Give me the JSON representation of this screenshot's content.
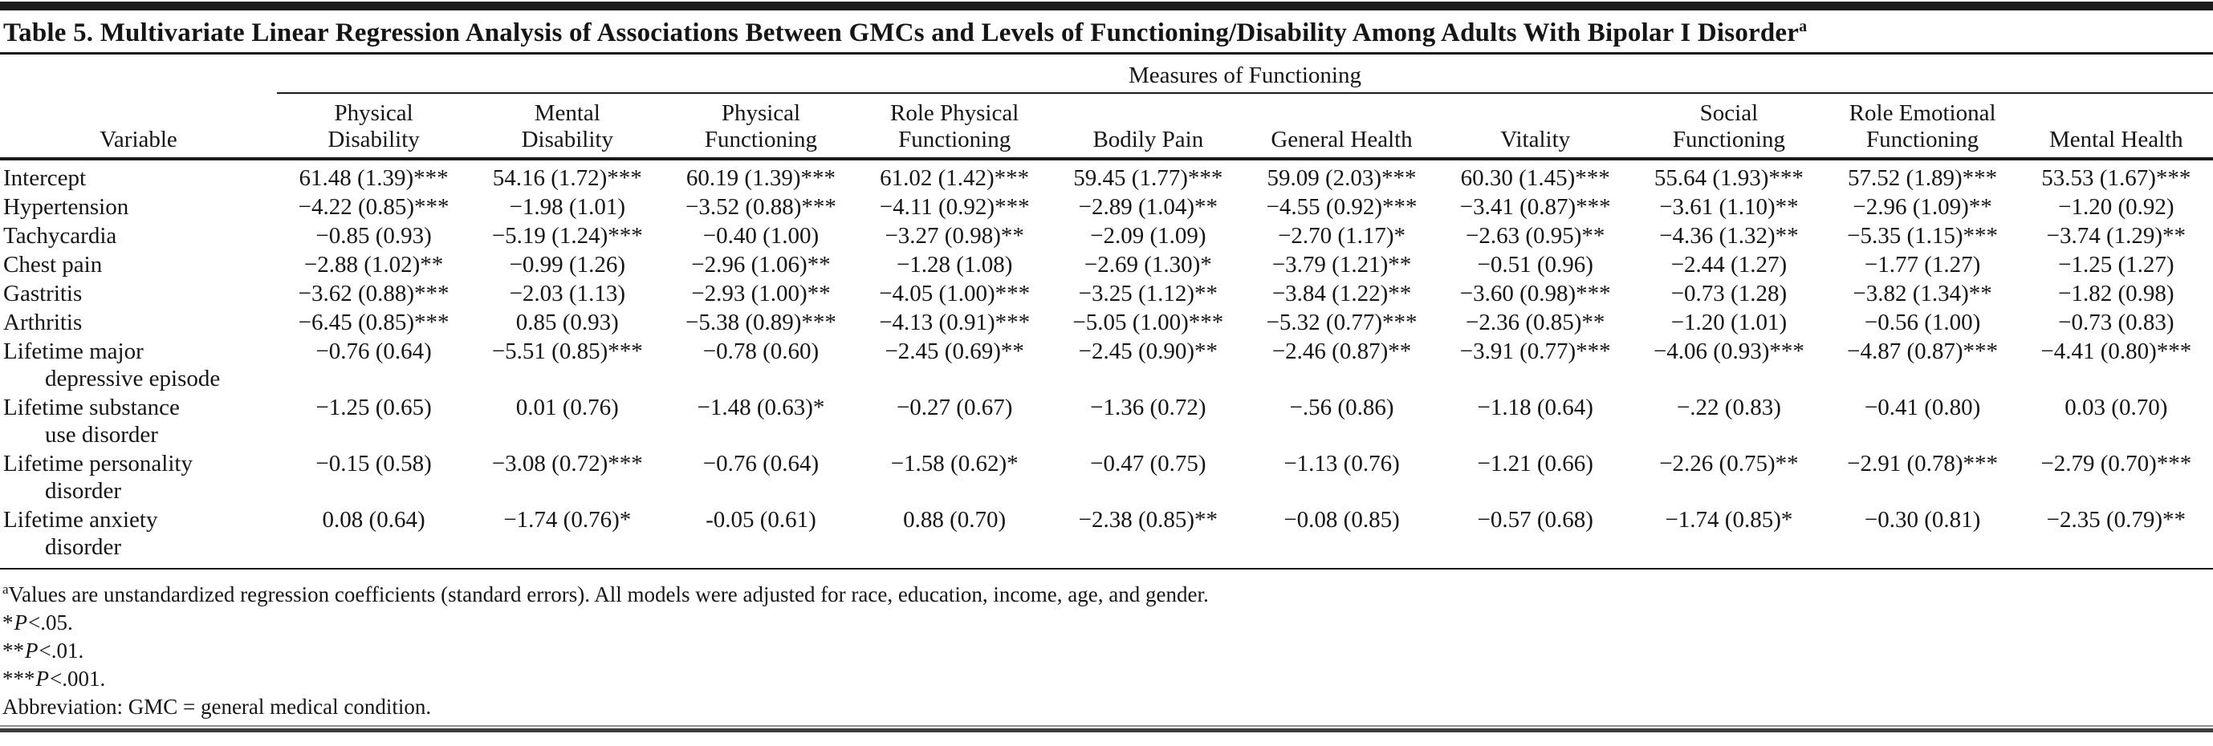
{
  "page": {
    "background": "#ffffff",
    "rule_color": "#1b1b1b",
    "text_color": "#151515"
  },
  "table": {
    "title": "Table 5. Multivariate Linear Regression Analysis of Associations Between GMCs and Levels of Functioning/Disability Among Adults With Bipolar I Disorder",
    "title_footnote_marker": "a",
    "spanner": "Measures of Functioning",
    "row_header": "Variable",
    "columns": [
      "Physical\nDisability",
      "Mental\nDisability",
      "Physical\nFunctioning",
      "Role Physical\nFunctioning",
      "Bodily Pain",
      "General Health",
      "Vitality",
      "Social\nFunctioning",
      "Role Emotional\nFunctioning",
      "Mental Health"
    ],
    "rows": [
      {
        "variable": "Intercept",
        "values": [
          "61.48 (1.39)***",
          "54.16 (1.72)***",
          "60.19 (1.39)***",
          "61.02 (1.42)***",
          "59.45 (1.77)***",
          "59.09 (2.03)***",
          "60.30 (1.45)***",
          "55.64 (1.93)***",
          "57.52 (1.89)***",
          "53.53 (1.67)***"
        ]
      },
      {
        "variable": "Hypertension",
        "values": [
          "−4.22 (0.85)***",
          "−1.98 (1.01)",
          "−3.52 (0.88)***",
          "−4.11 (0.92)***",
          "−2.89 (1.04)**",
          "−4.55 (0.92)***",
          "−3.41 (0.87)***",
          "−3.61 (1.10)**",
          "−2.96 (1.09)**",
          "−1.20 (0.92)"
        ]
      },
      {
        "variable": "Tachycardia",
        "values": [
          "−0.85 (0.93)",
          "−5.19 (1.24)***",
          "−0.40 (1.00)",
          "−3.27 (0.98)**",
          "−2.09 (1.09)",
          "−2.70 (1.17)*",
          "−2.63 (0.95)**",
          "−4.36 (1.32)**",
          "−5.35 (1.15)***",
          "−3.74 (1.29)**"
        ]
      },
      {
        "variable": "Chest pain",
        "values": [
          "−2.88 (1.02)**",
          "−0.99 (1.26)",
          "−2.96 (1.06)**",
          "−1.28 (1.08)",
          "−2.69 (1.30)*",
          "−3.79 (1.21)**",
          "−0.51 (0.96)",
          "−2.44 (1.27)",
          "−1.77 (1.27)",
          "−1.25 (1.27)"
        ]
      },
      {
        "variable": "Gastritis",
        "values": [
          "−3.62 (0.88)***",
          "−2.03 (1.13)",
          "−2.93 (1.00)**",
          "−4.05 (1.00)***",
          "−3.25 (1.12)**",
          "−3.84 (1.22)**",
          "−3.60 (0.98)***",
          "−0.73 (1.28)",
          "−3.82 (1.34)**",
          "−1.82 (0.98)"
        ]
      },
      {
        "variable": "Arthritis",
        "values": [
          "−6.45 (0.85)***",
          "0.85 (0.93)",
          "−5.38 (0.89)***",
          "−4.13 (0.91)***",
          "−5.05 (1.00)***",
          "−5.32 (0.77)***",
          "−2.36 (0.85)**",
          "−1.20 (1.01)",
          "−0.56 (1.00)",
          "−0.73 (0.83)"
        ]
      },
      {
        "variable": "Lifetime major\ndepressive episode",
        "values": [
          "−0.76 (0.64)",
          "−5.51 (0.85)***",
          "−0.78 (0.60)",
          "−2.45 (0.69)**",
          "−2.45 (0.90)**",
          "−2.46 (0.87)**",
          "−3.91 (0.77)***",
          "−4.06 (0.93)***",
          "−4.87 (0.87)***",
          "−4.41 (0.80)***"
        ]
      },
      {
        "variable": "Lifetime substance\nuse disorder",
        "values": [
          "−1.25 (0.65)",
          "0.01 (0.76)",
          "−1.48 (0.63)*",
          "−0.27 (0.67)",
          "−1.36 (0.72)",
          "−.56 (0.86)",
          "−1.18 (0.64)",
          "−.22 (0.83)",
          "−0.41 (0.80)",
          "0.03 (0.70)"
        ]
      },
      {
        "variable": "Lifetime personality\ndisorder",
        "values": [
          "−0.15 (0.58)",
          "−3.08 (0.72)***",
          "−0.76 (0.64)",
          "−1.58 (0.62)*",
          "−0.47 (0.75)",
          "−1.13 (0.76)",
          "−1.21 (0.66)",
          "−2.26 (0.75)**",
          "−2.91 (0.78)***",
          "−2.79 (0.70)***"
        ]
      },
      {
        "variable": "Lifetime anxiety\ndisorder",
        "values": [
          "0.08 (0.64)",
          "−1.74 (0.76)*",
          "-0.05 (0.61)",
          "0.88 (0.70)",
          "−2.38 (0.85)**",
          "−0.08 (0.85)",
          "−0.57 (0.68)",
          "−1.74 (0.85)*",
          "−0.30 (0.81)",
          "−2.35 (0.79)**"
        ]
      }
    ],
    "footnotes": {
      "adjust": {
        "sup": "a",
        "text": "Values are unstandardized regression coefficients (standard errors). All models were adjusted for race, education, income, age, and gender."
      },
      "p05": {
        "stars": "*",
        "p": "P",
        "rest": "<.05."
      },
      "p01": {
        "stars": "**",
        "p": "P",
        "rest": "<.01."
      },
      "p001": {
        "stars": "***",
        "p": "P",
        "rest": "<.001."
      },
      "abbr": "Abbreviation: GMC = general medical condition."
    }
  }
}
